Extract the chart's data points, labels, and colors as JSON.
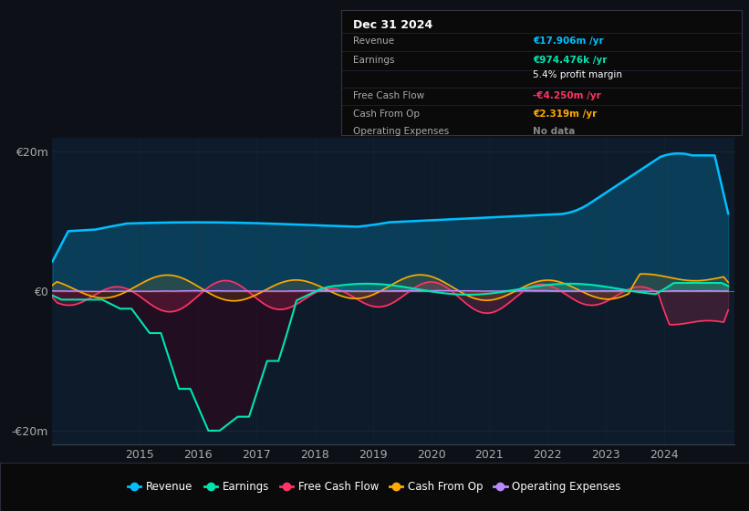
{
  "bg_color": "#0d1117",
  "plot_bg_color": "#0d1b2a",
  "grid_color": "#1e2d3d",
  "ylim": [
    -22000000,
    22000000
  ],
  "colors": {
    "revenue": "#00bfff",
    "earnings": "#00e5b0",
    "free_cash_flow": "#ff3366",
    "cash_from_op": "#ffaa00",
    "operating_expenses": "#bb88ff"
  },
  "legend_items": [
    "Revenue",
    "Earnings",
    "Free Cash Flow",
    "Cash From Op",
    "Operating Expenses"
  ],
  "info_box": {
    "date": "Dec 31 2024",
    "revenue_val": "€17.906m",
    "revenue_color": "#00bfff",
    "earnings_val": "€974.476k",
    "earnings_color": "#00e5b0",
    "profit_margin": "5.4%",
    "fcf_val": "-€4.250m",
    "fcf_color": "#ff3366",
    "cash_op_val": "€2.319m",
    "cash_op_color": "#ffaa00",
    "op_exp_val": "No data",
    "op_exp_color": "#888888"
  }
}
